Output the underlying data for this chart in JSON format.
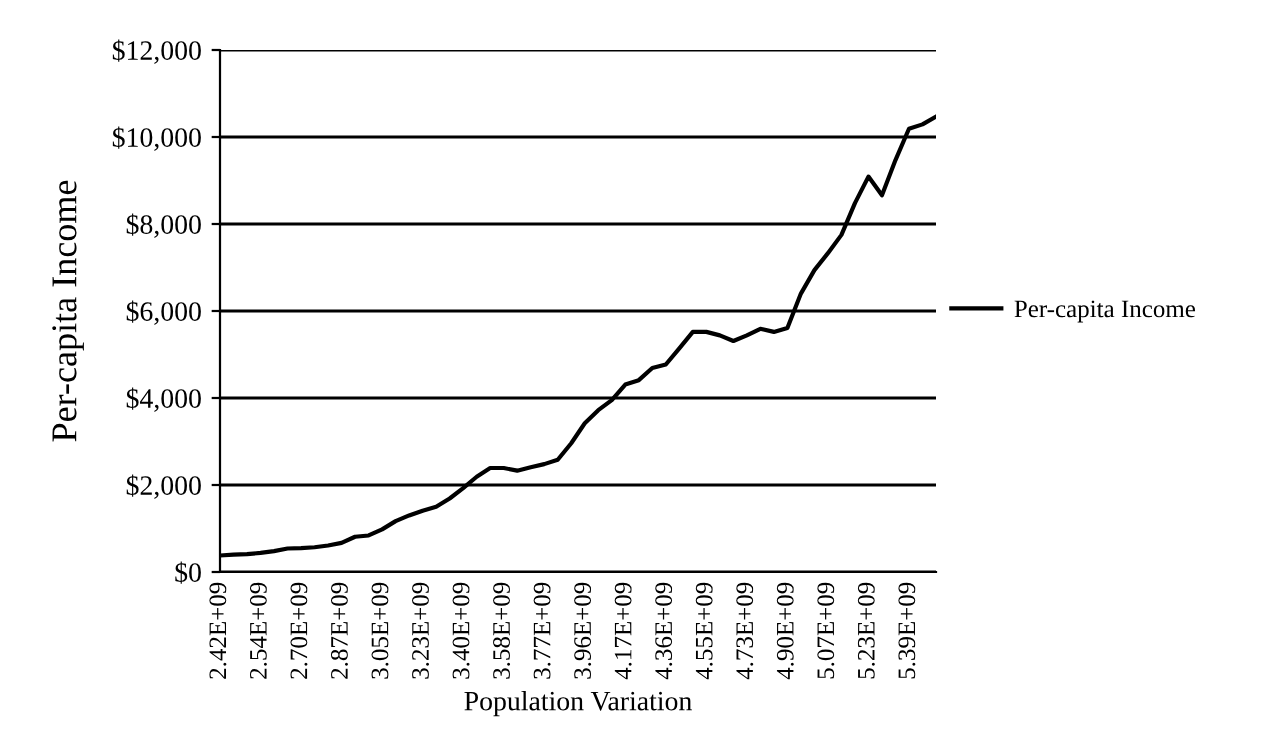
{
  "chart_data": {
    "type": "line",
    "xlabel": "Population Variation",
    "ylabel": "Per-capita Income",
    "categories": [
      "2.42E+09",
      null,
      null,
      "2.54E+09",
      null,
      null,
      "2.70E+09",
      null,
      null,
      "2.87E+09",
      null,
      null,
      "3.05E+09",
      null,
      null,
      "3.23E+09",
      null,
      null,
      "3.40E+09",
      null,
      null,
      "3.58E+09",
      null,
      null,
      "3.77E+09",
      null,
      null,
      "3.96E+09",
      null,
      null,
      "4.17E+09",
      null,
      null,
      "4.36E+09",
      null,
      null,
      "4.55E+09",
      null,
      null,
      "4.73E+09",
      null,
      null,
      "4.90E+09",
      null,
      null,
      "5.07E+09",
      null,
      null,
      "5.23E+09",
      null,
      null,
      "5.39E+09",
      null,
      null
    ],
    "series": [
      {
        "name": "Per-capita Income",
        "color": "#000000",
        "values": [
          380,
          400,
          410,
          440,
          480,
          540,
          550,
          570,
          610,
          670,
          810,
          840,
          980,
          1170,
          1300,
          1410,
          1500,
          1690,
          1930,
          2190,
          2390,
          2390,
          2330,
          2410,
          2480,
          2580,
          2960,
          3420,
          3720,
          3950,
          4310,
          4410,
          4690,
          4770,
          5140,
          5520,
          5520,
          5440,
          5310,
          5440,
          5590,
          5520,
          5610,
          6400,
          6940,
          7330,
          7750,
          8480,
          9090,
          8660,
          9470,
          10190,
          10290,
          10470
        ]
      }
    ],
    "ylim": [
      0,
      12000
    ],
    "yticks": [
      {
        "value": 0,
        "label": "$0"
      },
      {
        "value": 2000,
        "label": "$2,000"
      },
      {
        "value": 4000,
        "label": "$4,000"
      },
      {
        "value": 6000,
        "label": "$6,000"
      },
      {
        "value": 8000,
        "label": "$8,000"
      },
      {
        "value": 10000,
        "label": "$10,000"
      },
      {
        "value": 12000,
        "label": "$12,000"
      }
    ],
    "grid": "y",
    "legend": "right",
    "marker": "none",
    "line_style": "solid"
  }
}
